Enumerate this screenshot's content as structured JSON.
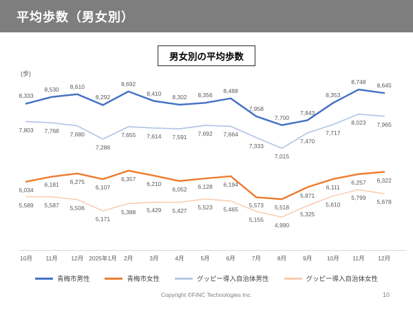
{
  "header": {
    "title": "平均歩数（男女別）"
  },
  "chart_title": "男女別の平均歩数",
  "y_axis_unit": "(歩)",
  "chart_data": {
    "type": "line",
    "title": "男女別の平均歩数",
    "y_unit": "(歩)",
    "grid": false,
    "data_labels": true,
    "legend_position": "bottom",
    "ylim": [
      4600,
      9300
    ],
    "categories": [
      "10月",
      "11月",
      "12月",
      "2025年1月",
      "2月",
      "3月",
      "4月",
      "5月",
      "6月",
      "7月",
      "8月",
      "9月",
      "10月",
      "11月",
      "12月"
    ],
    "series": [
      {
        "name": "青梅市男性",
        "color": "#4472C4",
        "label_position": "above",
        "values": [
          8333,
          8530,
          8610,
          8292,
          8692,
          8410,
          8302,
          8356,
          8488,
          7958,
          7700,
          7843,
          8353,
          8748,
          8645
        ]
      },
      {
        "name": "青梅市女性",
        "color": "#ED7D31",
        "label_position": "below",
        "values": [
          6034,
          6181,
          6275,
          6107,
          6357,
          6210,
          6052,
          6128,
          6194,
          5573,
          5518,
          5871,
          6111,
          6257,
          6322
        ]
      },
      {
        "name": "グッピー導入自治体男性",
        "color": "#B4C7E7",
        "label_position": "below",
        "values": [
          7803,
          7768,
          7680,
          7286,
          7655,
          7614,
          7591,
          7692,
          7664,
          7333,
          7015,
          7470,
          7717,
          8023,
          7965
        ]
      },
      {
        "name": "グッピー導入自治体女性",
        "color": "#F8CBAD",
        "label_position": "below",
        "values": [
          5589,
          5587,
          5506,
          5171,
          5388,
          5429,
          5427,
          5523,
          5465,
          5155,
          4990,
          5325,
          5610,
          5799,
          5678
        ]
      }
    ],
    "axis_line_color": "#D9D9D9"
  },
  "footer": {
    "copyright": "Copyright ©FiNC Technologies Inc.",
    "page_number": "10"
  }
}
